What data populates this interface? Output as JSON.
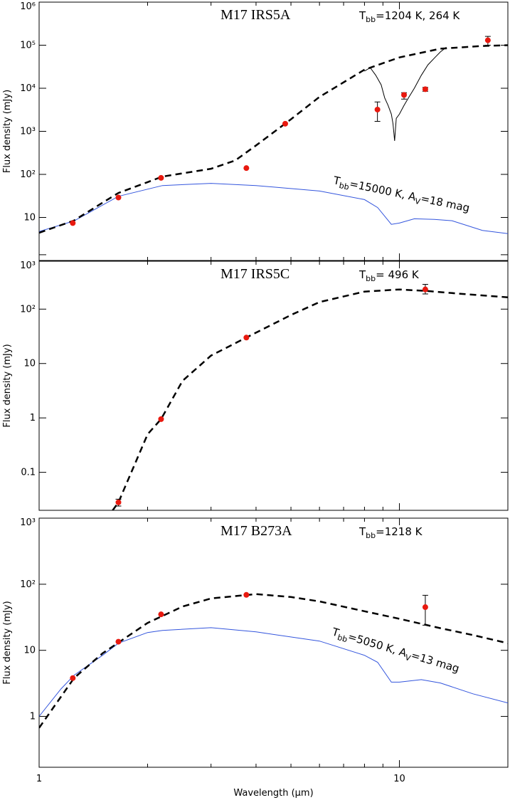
{
  "chart_data": [
    {
      "type": "line",
      "title": "M17 IRS5A",
      "annotation": [
        {
          "text": "T"
        },
        {
          "text": "bb",
          "sub": true
        },
        {
          "text": "=1204 K, 264 K"
        }
      ],
      "model_label": [
        {
          "text": "T"
        },
        {
          "text": "bb",
          "sub": true
        },
        {
          "text": "=15000 K, A"
        },
        {
          "text": "V",
          "sub": true
        },
        {
          "text": "=18 mag"
        }
      ],
      "ylabel": "Flux density (mJy)",
      "log_x": true,
      "log_y": true,
      "xlim": [
        1,
        20
      ],
      "ylim": [
        1,
        1000000
      ],
      "xticks": [
        1,
        10
      ],
      "xminorticks": [
        2,
        3,
        4,
        5,
        6,
        7,
        8,
        9,
        20
      ],
      "xtick_labels": false,
      "yticks": [
        10,
        {
          "value": 100,
          "label": "10²"
        },
        {
          "value": 1000,
          "label": "10³"
        },
        {
          "value": 10000,
          "label": "10⁴"
        },
        {
          "value": 100000,
          "label": "10⁵"
        },
        {
          "value": 1000000,
          "label": "10⁶"
        }
      ],
      "series": [
        {
          "style": "solid",
          "color": "#3355dd",
          "x": [
            1,
            1.25,
            1.66,
            2.2,
            3,
            4,
            6,
            8,
            8.7,
            9.5,
            10,
            11,
            12.5,
            14,
            17,
            20
          ],
          "values": [
            4.7,
            8.3,
            31,
            55,
            62,
            55,
            41,
            26,
            17,
            6.9,
            7.4,
            9.3,
            9,
            8.4,
            5,
            4.2
          ]
        },
        {
          "style": "thin",
          "color": "#000000",
          "x": [
            8,
            8.3,
            8.6,
            8.9,
            9.1,
            9.3,
            9.5,
            9.6,
            9.7,
            9.8,
            10,
            10.3,
            10.6,
            11,
            11.5,
            12,
            12.5,
            13,
            13.5
          ],
          "values": [
            25000,
            30000,
            20000,
            12000,
            6000,
            4000,
            2500,
            1500,
            600,
            2000,
            2500,
            4000,
            6000,
            10000,
            20000,
            35000,
            50000,
            70000,
            90000
          ]
        },
        {
          "style": "dashed",
          "color": "#000000",
          "x": [
            1,
            1.25,
            1.5,
            1.66,
            2,
            2.2,
            3,
            3.5,
            4,
            5,
            6,
            8,
            10,
            13,
            17,
            20
          ],
          "values": [
            4.4,
            8.5,
            22,
            37,
            66,
            89,
            135,
            210,
            470,
            1900,
            6300,
            27000,
            52000,
            83000,
            96000,
            100000
          ]
        },
        {
          "style": "points",
          "color": "#e8190f",
          "x": [
            1.24,
            1.66,
            2.18,
            3.76,
            4.82,
            8.69,
            10.3,
            11.8,
            17.6
          ],
          "values": [
            7.4,
            29,
            83,
            140,
            1500,
            3200,
            7000,
            9500,
            130000
          ],
          "error_low": [
            null,
            null,
            null,
            null,
            null,
            1700,
            5600,
            8500,
            100000
          ],
          "error_high": [
            null,
            null,
            null,
            null,
            null,
            4800,
            7900,
            10500,
            160000
          ]
        }
      ]
    },
    {
      "type": "line",
      "title": "M17 IRS5C",
      "annotation": [
        {
          "text": "T"
        },
        {
          "text": "bb",
          "sub": true
        },
        {
          "text": "= 496 K"
        }
      ],
      "ylabel": "Flux density (mJy)",
      "log_x": true,
      "log_y": true,
      "xlim": [
        1,
        20
      ],
      "ylim": [
        0.02,
        760
      ],
      "xticks": [
        1,
        10
      ],
      "xminorticks": [
        2,
        3,
        4,
        5,
        6,
        7,
        8,
        9,
        20
      ],
      "xtick_labels": false,
      "yticks": [
        0.1,
        1,
        10,
        {
          "value": 100,
          "label": "10²"
        },
        {
          "value": 1000,
          "label": "10³"
        }
      ],
      "series": [
        {
          "style": "dashed",
          "color": "#000000",
          "x": [
            1.6,
            1.66,
            2,
            2.18,
            2.5,
            3,
            3.76,
            5,
            6,
            8,
            10,
            12,
            15,
            20
          ],
          "values": [
            0.02,
            0.028,
            0.5,
            0.95,
            4.8,
            14,
            30,
            78,
            135,
            210,
            230,
            215,
            190,
            165
          ]
        },
        {
          "style": "points",
          "color": "#e8190f",
          "x": [
            1.66,
            2.18,
            3.76,
            11.8
          ],
          "values": [
            0.028,
            0.95,
            30,
            230
          ],
          "error_low": [
            0.024,
            null,
            null,
            190
          ],
          "error_high": [
            0.032,
            null,
            null,
            285
          ]
        }
      ]
    },
    {
      "type": "line",
      "title": "M17 B273A",
      "annotation": [
        {
          "text": "T"
        },
        {
          "text": "bb",
          "sub": true
        },
        {
          "text": "=1218 K"
        }
      ],
      "model_label": [
        {
          "text": "T"
        },
        {
          "text": "bb",
          "sub": true
        },
        {
          "text": "=5050 K, A"
        },
        {
          "text": "V",
          "sub": true
        },
        {
          "text": "=13 mag"
        }
      ],
      "ylabel": "Flux density (mJy)",
      "xlabel": "Wavelength (μm)",
      "log_x": true,
      "log_y": true,
      "xlim": [
        1,
        20
      ],
      "ylim": [
        0.17,
        1000
      ],
      "xticks": [
        1,
        10
      ],
      "xminorticks": [
        2,
        3,
        4,
        5,
        6,
        7,
        8,
        9,
        20
      ],
      "yticks": [
        1,
        10,
        {
          "value": 100,
          "label": "10²"
        },
        {
          "value": 1000,
          "label": "10³"
        }
      ],
      "series": [
        {
          "style": "solid",
          "color": "#3355dd",
          "x": [
            1,
            1.15,
            1.25,
            1.5,
            1.66,
            2,
            2.2,
            3,
            4,
            6,
            8,
            8.7,
            9.5,
            10,
            11.5,
            13,
            16,
            20
          ],
          "values": [
            1,
            2.6,
            4.2,
            8.4,
            12.8,
            18.6,
            20,
            22,
            19,
            13.8,
            8.4,
            6.6,
            3.3,
            3.3,
            3.6,
            3.2,
            2.2,
            1.6
          ]
        },
        {
          "style": "dashed",
          "color": "#000000",
          "x": [
            1,
            1.25,
            1.5,
            2,
            2.5,
            3,
            4,
            5,
            6,
            8,
            10,
            13,
            16,
            20
          ],
          "values": [
            0.67,
            3.8,
            9,
            26,
            46,
            61,
            71,
            64,
            55,
            39,
            30,
            21.6,
            17,
            12.8
          ]
        },
        {
          "style": "points",
          "color": "#e8190f",
          "x": [
            1.24,
            1.66,
            2.18,
            3.76,
            11.8
          ],
          "values": [
            3.8,
            13.5,
            35,
            69,
            45
          ],
          "error_low": [
            null,
            null,
            null,
            null,
            24
          ],
          "error_high": [
            null,
            null,
            null,
            null,
            68
          ]
        }
      ]
    }
  ]
}
